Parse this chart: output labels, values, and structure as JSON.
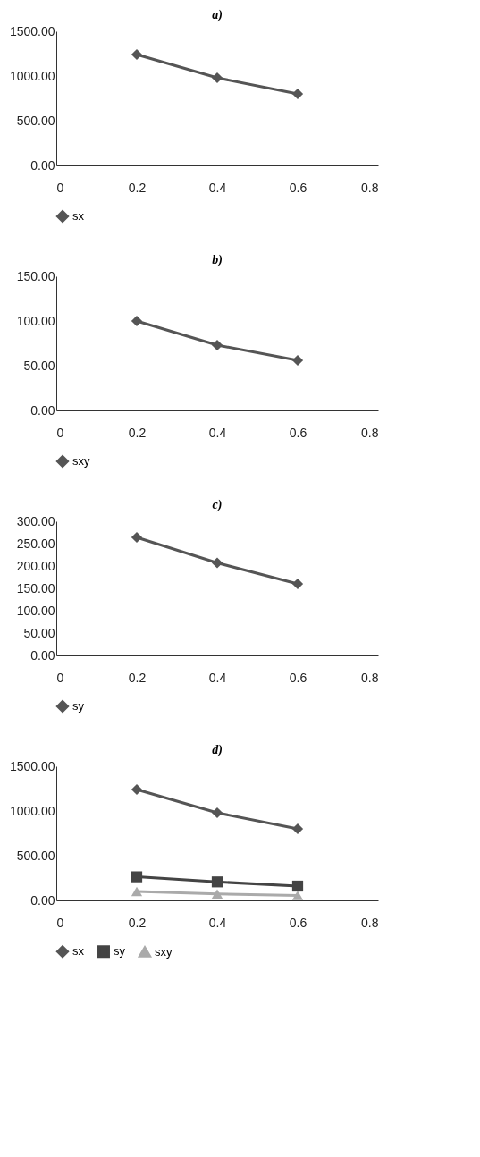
{
  "chart_data": [
    {
      "type": "line",
      "title": "a)",
      "x": [
        0.2,
        0.4,
        0.6
      ],
      "xlim": [
        0,
        0.8
      ],
      "xticks": [
        0,
        0.2,
        0.4,
        0.6,
        0.8
      ],
      "ylim": [
        0,
        1500
      ],
      "yticks": [
        {
          "value": 0,
          "label": "0.00"
        },
        {
          "value": 500,
          "label": "500.00"
        },
        {
          "value": 1000,
          "label": "1000.00"
        },
        {
          "value": 1500,
          "label": "1500.00"
        }
      ],
      "grid": false,
      "legend": "bottom",
      "marker": "diamond",
      "series": [
        {
          "name": "sx",
          "color": "#555555",
          "values": [
            1240,
            980,
            800
          ]
        }
      ]
    },
    {
      "type": "line",
      "title": "b)",
      "x": [
        0.2,
        0.4,
        0.6
      ],
      "xlim": [
        0,
        0.8
      ],
      "xticks": [
        0,
        0.2,
        0.4,
        0.6,
        0.8
      ],
      "ylim": [
        0,
        150
      ],
      "yticks": [
        {
          "value": 0,
          "label": "0.00"
        },
        {
          "value": 50,
          "label": "50.00"
        },
        {
          "value": 100,
          "label": "100.00"
        },
        {
          "value": 150,
          "label": "150.00"
        }
      ],
      "grid": false,
      "legend": "bottom",
      "marker": "diamond",
      "series": [
        {
          "name": "sxy",
          "color": "#555555",
          "values": [
            100,
            73,
            56
          ]
        }
      ]
    },
    {
      "type": "line",
      "title": "c)",
      "x": [
        0.2,
        0.4,
        0.6
      ],
      "xlim": [
        0,
        0.8
      ],
      "xticks": [
        0,
        0.2,
        0.4,
        0.6,
        0.8
      ],
      "ylim": [
        0,
        300
      ],
      "yticks": [
        {
          "value": 0,
          "label": "0.00"
        },
        {
          "value": 50,
          "label": "50.00"
        },
        {
          "value": 100,
          "label": "100.00"
        },
        {
          "value": 150,
          "label": "150.00"
        },
        {
          "value": 200,
          "label": "200.00"
        },
        {
          "value": 250,
          "label": "250.00"
        },
        {
          "value": 300,
          "label": "300.00"
        }
      ],
      "grid": false,
      "legend": "bottom",
      "marker": "diamond",
      "series": [
        {
          "name": "sy",
          "color": "#555555",
          "values": [
            264,
            207,
            160
          ]
        }
      ]
    },
    {
      "type": "line",
      "title": "d)",
      "x": [
        0.2,
        0.4,
        0.6
      ],
      "xlim": [
        0,
        0.8
      ],
      "xticks": [
        0,
        0.2,
        0.4,
        0.6,
        0.8
      ],
      "ylim": [
        0,
        1500
      ],
      "yticks": [
        {
          "value": 0,
          "label": "0.00"
        },
        {
          "value": 500,
          "label": "500.00"
        },
        {
          "value": 1000,
          "label": "1000.00"
        },
        {
          "value": 1500,
          "label": "1500.00"
        }
      ],
      "grid": false,
      "legend": "bottom",
      "marker": "diamond",
      "series": [
        {
          "name": "sx",
          "color": "#555555",
          "values": [
            1240,
            980,
            800
          ]
        },
        {
          "name": "sy",
          "color": "#444444",
          "marker": "square",
          "values": [
            264,
            207,
            160
          ]
        },
        {
          "name": "sxy",
          "color": "#aaaaaa",
          "marker": "triangle",
          "values": [
            100,
            73,
            56
          ]
        }
      ]
    }
  ]
}
